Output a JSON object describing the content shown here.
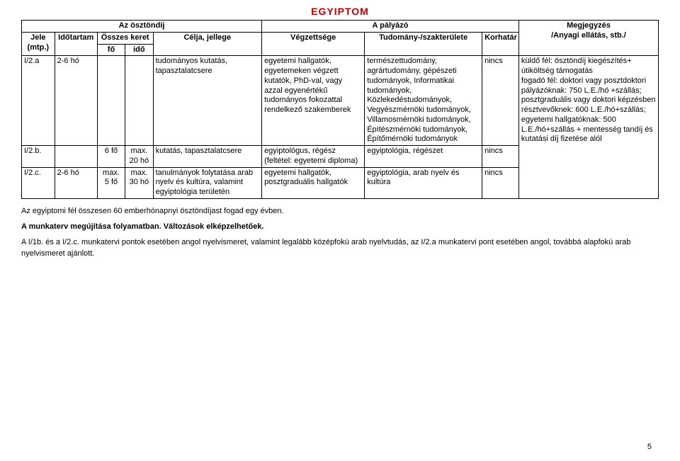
{
  "title": "EGYIPTOM",
  "headers": {
    "group_left": "Az ösztöndíj",
    "group_right": "A pályázó",
    "megjegyzes": "Megjegyzés",
    "jele": "Jele (mtp.)",
    "idotartam": "Időtartam",
    "osszes_keret": "Összes keret",
    "fo": "fő",
    "ido": "idő",
    "celja": "Célja, jellege",
    "vegzettseg": "Végzettsége",
    "szakter": "Tudomány-/szakterülete",
    "korhatar": "Korhatár",
    "anyagi": "/Anyagi ellátás, stb./"
  },
  "rows": [
    {
      "jele": "I/2.a",
      "idotartam": "2-6 hó",
      "fo": "",
      "ido": "",
      "celja": "tudományos kutatás, tapasztalatcsere",
      "vegzettseg": "egyetemi hallgatók, egyetemeken végzett kutatók, PhD-val, vagy azzal egyenértékű tudományos fokozattal rendelkező szakemberek",
      "szakter": "természettudomány, agrártudomány, gépészeti tudományok, Informatikai tudományok, Közlekedéstudományok, Vegyészmérnöki tudományok, Villamosmérnöki tudományok, Építészmérnöki tudományok, Építőmérnöki tudományok",
      "korhatar": "nincs",
      "anyagi": "küldő fél: ösztöndíj kiegészítés+ útiköltség támogatás\nfogadó fél: doktori vagy posztdoktori pályázóknak: 750 L.E./hó +szállás; posztgraduális vagy doktori képzésben résztvevőknek: 600 L.E./hó+szállás; egyetemi hallgatóknak: 500 L.E./hó+szállás + mentesség tandíj és kutatási díj fizetése alól"
    },
    {
      "jele": "I/2.b.",
      "idotartam": "",
      "fo": "6 fő",
      "ido": "max. 20 hó",
      "celja": "kutatás, tapasztalatcsere",
      "vegzettseg": "egyiptológus, régész (feltétel: egyetemi diploma)",
      "szakter": "egyiptológia, régészet",
      "korhatar": "nincs",
      "anyagi": ""
    },
    {
      "jele": "I/2.c.",
      "idotartam": "2-6 hó",
      "fo": "max. 5 fő",
      "ido": "max. 30 hó",
      "celja": "tanulmányok folytatása arab nyelv és kultúra, valamint egyiptológia területén",
      "vegzettseg": "egyetemi hallgatók, posztgraduális hallgatók",
      "szakter": "egyiptológia, arab nyelv és kultúra",
      "korhatar": "nincs",
      "anyagi": ""
    }
  ],
  "notes": {
    "line1": "Az egyiptomi fél összesen 60 emberhónapnyi ösztöndíjast fogad egy évben.",
    "line2": "A munkaterv megújítása folyamatban. Változások elképzelhetőek.",
    "line3": "A I/1b. és a I/2.c. munkatervi pontok esetében angol nyelvismeret, valamint legalább középfokú arab nyelvtudás, az I/2.a  munkatervi pont esetében angol, továbbá alapfokú arab nyelvismeret ajánlott."
  },
  "page_number": "5",
  "colwidths": {
    "jele": "45px",
    "idotartam": "58px",
    "fo": "38px",
    "ido": "38px",
    "celja": "148px",
    "vegzettseg": "140px",
    "szakter": "160px",
    "korhatar": "50px",
    "anyagi": "190px"
  }
}
